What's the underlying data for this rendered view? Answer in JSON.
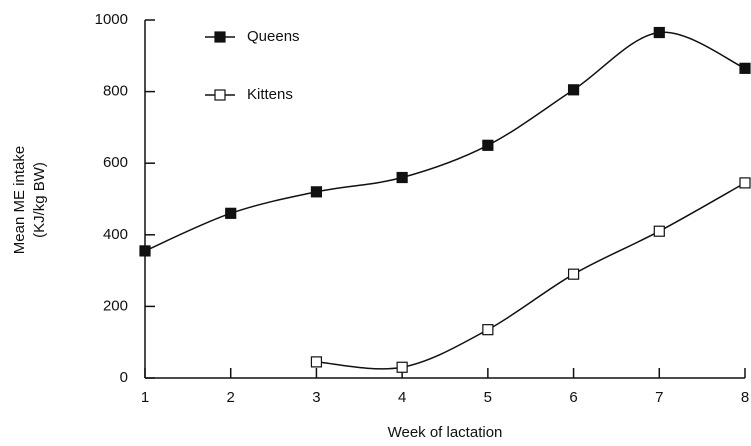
{
  "chart_data": {
    "type": "line",
    "y_label": [
      "Mean ME intake",
      "(KJ/kg BW)"
    ],
    "x_label": "Week of lactation",
    "x": [
      1,
      2,
      3,
      4,
      5,
      6,
      7,
      8
    ],
    "xlim": [
      1,
      8
    ],
    "xticks": [
      1,
      2,
      3,
      4,
      5,
      6,
      7,
      8
    ],
    "ylim": [
      0,
      1000
    ],
    "yticks": [
      0,
      200,
      400,
      600,
      800,
      1000
    ],
    "series": [
      {
        "name": "Queens",
        "color": "#111111",
        "marker": "filled",
        "values": [
          355,
          460,
          520,
          560,
          650,
          805,
          965,
          865
        ]
      },
      {
        "name": "Kittens",
        "color": "#111111",
        "marker": "hollow",
        "values": [
          null,
          null,
          45,
          30,
          135,
          290,
          410,
          545
        ]
      }
    ]
  }
}
